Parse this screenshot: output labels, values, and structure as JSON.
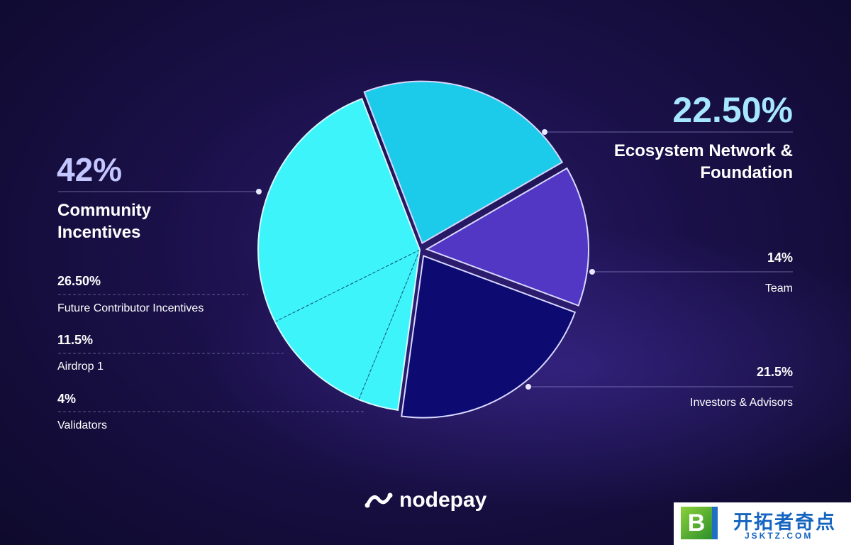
{
  "chart_data": {
    "type": "pie",
    "categories": [
      "Community Incentives",
      "Ecosystem Network & Foundation",
      "Team",
      "Investors & Advisors"
    ],
    "values": [
      42,
      22.5,
      14,
      21.5
    ],
    "value_labels": [
      "42%",
      "22.50%",
      "14%",
      "21.5%"
    ],
    "colors": [
      "#3ef4fb",
      "#1ccbea",
      "#5236c4",
      "#0d0a72"
    ],
    "breakdown": {
      "categories": [
        "Future Contributor Incentives",
        "Airdrop 1",
        "Validators"
      ],
      "values": [
        26.5,
        11.5,
        4
      ],
      "value_labels": [
        "26.50%",
        "11.5%",
        "4%"
      ]
    }
  },
  "brand": "nodepay",
  "watermark": {
    "badge": "B",
    "title": "开拓者奇点",
    "url": "JSKTZ.COM"
  }
}
